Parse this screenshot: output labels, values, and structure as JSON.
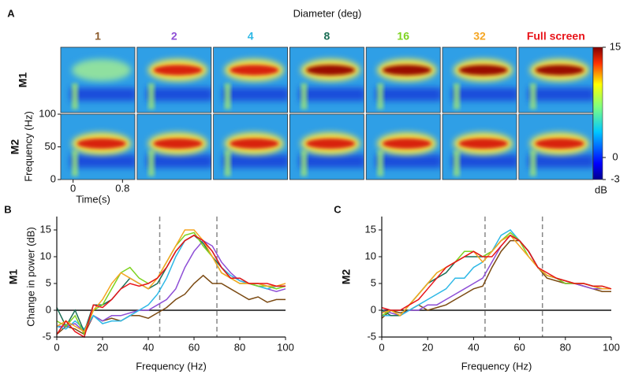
{
  "chart_data": [
    {
      "type": "heatmap",
      "panel": "A",
      "title": "Diameter (deg)",
      "columns": [
        {
          "name": "1",
          "color": "#8b5a2b"
        },
        {
          "name": "2",
          "color": "#8e4fd6"
        },
        {
          "name": "4",
          "color": "#2eb8e6"
        },
        {
          "name": "8",
          "color": "#1b6e55"
        },
        {
          "name": "16",
          "color": "#7ed321"
        },
        {
          "name": "32",
          "color": "#f5a623"
        },
        {
          "name": "Full screen",
          "color": "#e8141a"
        }
      ],
      "rows": [
        "M1",
        "M2"
      ],
      "ylabel": "Frequency (Hz)",
      "ylim": [
        0,
        100
      ],
      "yticks": [
        0,
        50,
        100
      ],
      "xlabel": "Time(s)",
      "xlim": [
        -0.2,
        1.0
      ],
      "xticks": [
        0,
        0.8
      ],
      "colorbar": {
        "label": "dB",
        "clim": [
          -3,
          15
        ],
        "ticks": [
          -3,
          0,
          15
        ]
      }
    },
    {
      "type": "line",
      "panel": "B",
      "row_label": "M1",
      "ylabel": "Change in power (dB)",
      "xlabel": "Frequency (Hz)",
      "x": [
        0,
        4,
        8,
        12,
        16,
        20,
        24,
        28,
        32,
        36,
        40,
        44,
        48,
        52,
        56,
        60,
        64,
        68,
        72,
        76,
        80,
        84,
        88,
        92,
        96,
        100
      ],
      "series": [
        {
          "name": "1",
          "color": "#7b4a12",
          "values": [
            -4.5,
            -3,
            -3.5,
            -4.5,
            -1,
            -2,
            -1.5,
            -2,
            -1,
            -1,
            -1.5,
            -0.5,
            0.5,
            2,
            3,
            5,
            6.5,
            5,
            5,
            4,
            3,
            2,
            2.5,
            1.5,
            2,
            2
          ]
        },
        {
          "name": "2",
          "color": "#8e4fd6",
          "values": [
            -3,
            -3,
            -2.5,
            -4,
            -1,
            -2,
            -1,
            -1,
            -0.5,
            0,
            0,
            1,
            2,
            4,
            8,
            11,
            13,
            12,
            9,
            7,
            5.5,
            5,
            4.5,
            4,
            3.5,
            4
          ]
        },
        {
          "name": "4",
          "color": "#2eb8e6",
          "values": [
            -3,
            -3.5,
            -2,
            -3.5,
            -1,
            -2.5,
            -2,
            -2,
            -1,
            0,
            1,
            3,
            6,
            10,
            13,
            14,
            13,
            11,
            8,
            6.5,
            5.5,
            5,
            4.5,
            4,
            4.5,
            4.5
          ]
        },
        {
          "name": "8",
          "color": "#1b6e55",
          "values": [
            0.5,
            -3,
            0,
            -4,
            1,
            1,
            2,
            4,
            6,
            5,
            4,
            5,
            8,
            11,
            13,
            14,
            12.5,
            10,
            8,
            6,
            6,
            5,
            5,
            4.5,
            4.5,
            4.5
          ]
        },
        {
          "name": "16",
          "color": "#7ed321",
          "values": [
            -2,
            -3,
            -1,
            -4.5,
            0,
            1,
            4,
            7,
            8,
            6,
            5,
            6,
            9,
            12,
            14,
            14.5,
            12,
            10,
            7,
            6,
            5,
            5,
            4.5,
            4.5,
            4,
            4.5
          ]
        },
        {
          "name": "32",
          "color": "#f5a623",
          "values": [
            -3,
            -2,
            -3,
            -4,
            0,
            2,
            5,
            7,
            6,
            5,
            4,
            6,
            9,
            12,
            15,
            15,
            13,
            10,
            7,
            6,
            5,
            5,
            5,
            4.5,
            4.5,
            5
          ]
        },
        {
          "name": "Full screen",
          "color": "#e8141a",
          "values": [
            -4.5,
            -2,
            -4,
            -5,
            1,
            0.5,
            2,
            4,
            5,
            4.5,
            5,
            6,
            8,
            11,
            13,
            14,
            13,
            11,
            8,
            6,
            6,
            5,
            5,
            5,
            4.5,
            4.5
          ]
        }
      ],
      "xlim": [
        0,
        100
      ],
      "xticks": [
        0,
        20,
        40,
        60,
        80,
        100
      ],
      "ylim": [
        -5,
        17.5
      ],
      "yticks": [
        -5,
        0,
        5,
        10,
        15
      ],
      "vlines": [
        45,
        70
      ],
      "hline": 0
    },
    {
      "type": "line",
      "panel": "C",
      "row_label": "M2",
      "xlabel": "Frequency (Hz)",
      "x": [
        0,
        4,
        8,
        12,
        16,
        20,
        24,
        28,
        32,
        36,
        40,
        44,
        48,
        52,
        56,
        60,
        64,
        68,
        72,
        76,
        80,
        84,
        88,
        92,
        96,
        100
      ],
      "series": [
        {
          "name": "1",
          "color": "#7b4a12",
          "values": [
            -1.5,
            0,
            -0.5,
            0,
            1,
            0,
            0.5,
            1,
            2,
            3,
            4,
            4.5,
            8,
            11,
            13,
            13,
            11,
            8,
            6,
            5.5,
            5,
            5,
            4.5,
            4,
            3.5,
            3.5
          ]
        },
        {
          "name": "2",
          "color": "#8e4fd6",
          "values": [
            0,
            -0.5,
            -1,
            0,
            0,
            1,
            1,
            2,
            3,
            4,
            5,
            6,
            9,
            12,
            14,
            13,
            11,
            8,
            6.5,
            6,
            5,
            5,
            4.5,
            4,
            4,
            4
          ]
        },
        {
          "name": "4",
          "color": "#2eb8e6",
          "values": [
            -1,
            -1,
            -1,
            0,
            1,
            2,
            3,
            4,
            6,
            6,
            8,
            9,
            11,
            14,
            15,
            13,
            11,
            8,
            6.5,
            6,
            5.5,
            5,
            5,
            4.5,
            4,
            4
          ]
        },
        {
          "name": "8",
          "color": "#1b6e55",
          "values": [
            0,
            -1,
            -1,
            1,
            3,
            5,
            6,
            7,
            9,
            10,
            10,
            10,
            11,
            13,
            14,
            13,
            11,
            8,
            6.5,
            6,
            5.5,
            5,
            5,
            4.5,
            4,
            4
          ]
        },
        {
          "name": "16",
          "color": "#7ed321",
          "values": [
            -1,
            0,
            -1,
            1,
            3,
            5,
            7,
            8,
            9,
            11,
            11,
            10,
            11,
            13,
            14.5,
            13,
            10,
            8,
            6.5,
            6,
            5,
            5,
            5,
            4.5,
            4.5,
            4
          ]
        },
        {
          "name": "32",
          "color": "#f5a623",
          "values": [
            -0.5,
            0,
            -1,
            1,
            3,
            5,
            7,
            8,
            9,
            10,
            11,
            9,
            11,
            13,
            14,
            12,
            10,
            8,
            6.5,
            6,
            5.5,
            5,
            5,
            4.5,
            4,
            4
          ]
        },
        {
          "name": "Full screen",
          "color": "#e8141a",
          "values": [
            0.5,
            0,
            0,
            1,
            2,
            4,
            6,
            8,
            9,
            10,
            11,
            10,
            10,
            12,
            14,
            13,
            11,
            8,
            7,
            6,
            5.5,
            5,
            5,
            4.5,
            4.5,
            4
          ]
        }
      ],
      "xlim": [
        0,
        100
      ],
      "xticks": [
        0,
        20,
        40,
        60,
        80,
        100
      ],
      "ylim": [
        -5,
        17.5
      ],
      "yticks": [
        -5,
        0,
        5,
        10,
        15
      ],
      "vlines": [
        45,
        70
      ],
      "hline": 0
    }
  ]
}
